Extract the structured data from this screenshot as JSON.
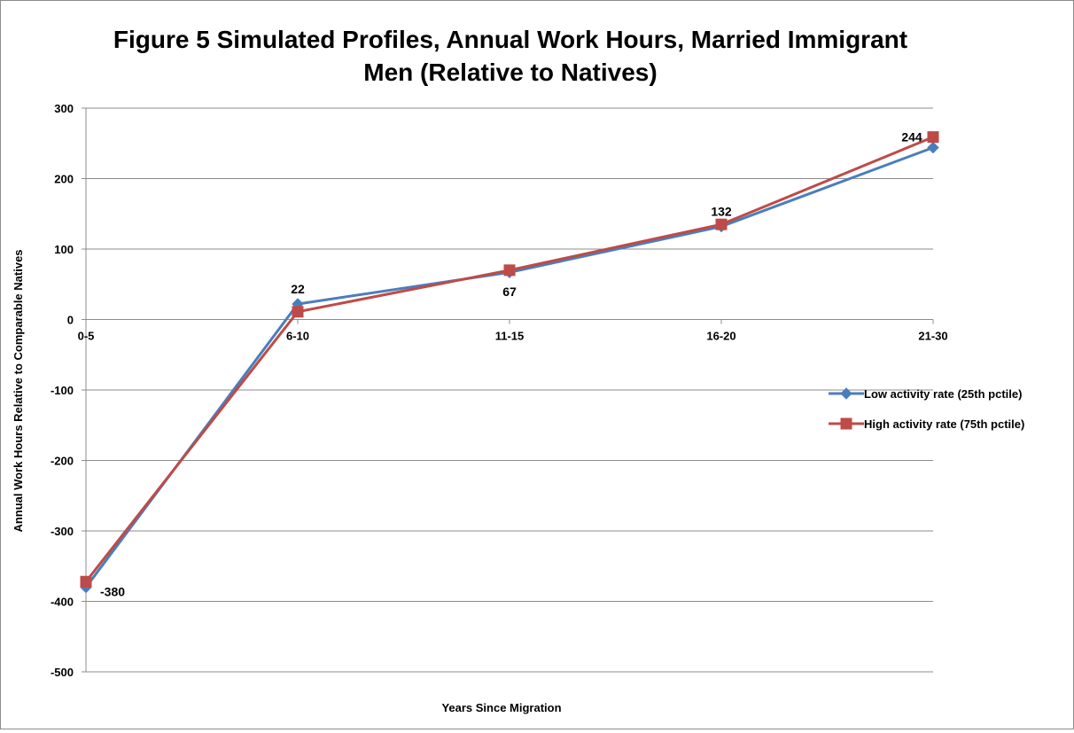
{
  "chart_data": {
    "type": "line",
    "title_line1": "Figure 5 Simulated Profiles, Annual Work Hours, Married Immigrant",
    "title_line2": "Men (Relative to Natives)",
    "xlabel": "Years Since Migration",
    "ylabel": "Annual Work Hours Relative to Comparable Natives",
    "categories": [
      "0-5",
      "6-10",
      "11-15",
      "16-20",
      "21-30"
    ],
    "ylim": [
      -500,
      300
    ],
    "yticks": [
      300,
      200,
      100,
      0,
      -100,
      -200,
      -300,
      -400,
      -500
    ],
    "grid": true,
    "legend_position": "right",
    "series": [
      {
        "name": "Low activity rate (25th pctile)",
        "color": "#4a7ebb",
        "marker": "diamond",
        "values": [
          -380,
          22,
          67,
          132,
          244
        ]
      },
      {
        "name": "High activity rate (75th pctile)",
        "color": "#be4b48",
        "marker": "square",
        "values": [
          -372,
          11,
          70,
          135,
          259
        ]
      }
    ],
    "data_labels": [
      {
        "series": 0,
        "index": 0,
        "text": "-380",
        "place": "right"
      },
      {
        "series": 0,
        "index": 1,
        "text": "22",
        "place": "above"
      },
      {
        "series": 0,
        "index": 2,
        "text": "67",
        "place": "below"
      },
      {
        "series": 0,
        "index": 3,
        "text": "132",
        "place": "above"
      },
      {
        "series": 0,
        "index": 4,
        "text": "244",
        "place": "above-left"
      }
    ]
  }
}
